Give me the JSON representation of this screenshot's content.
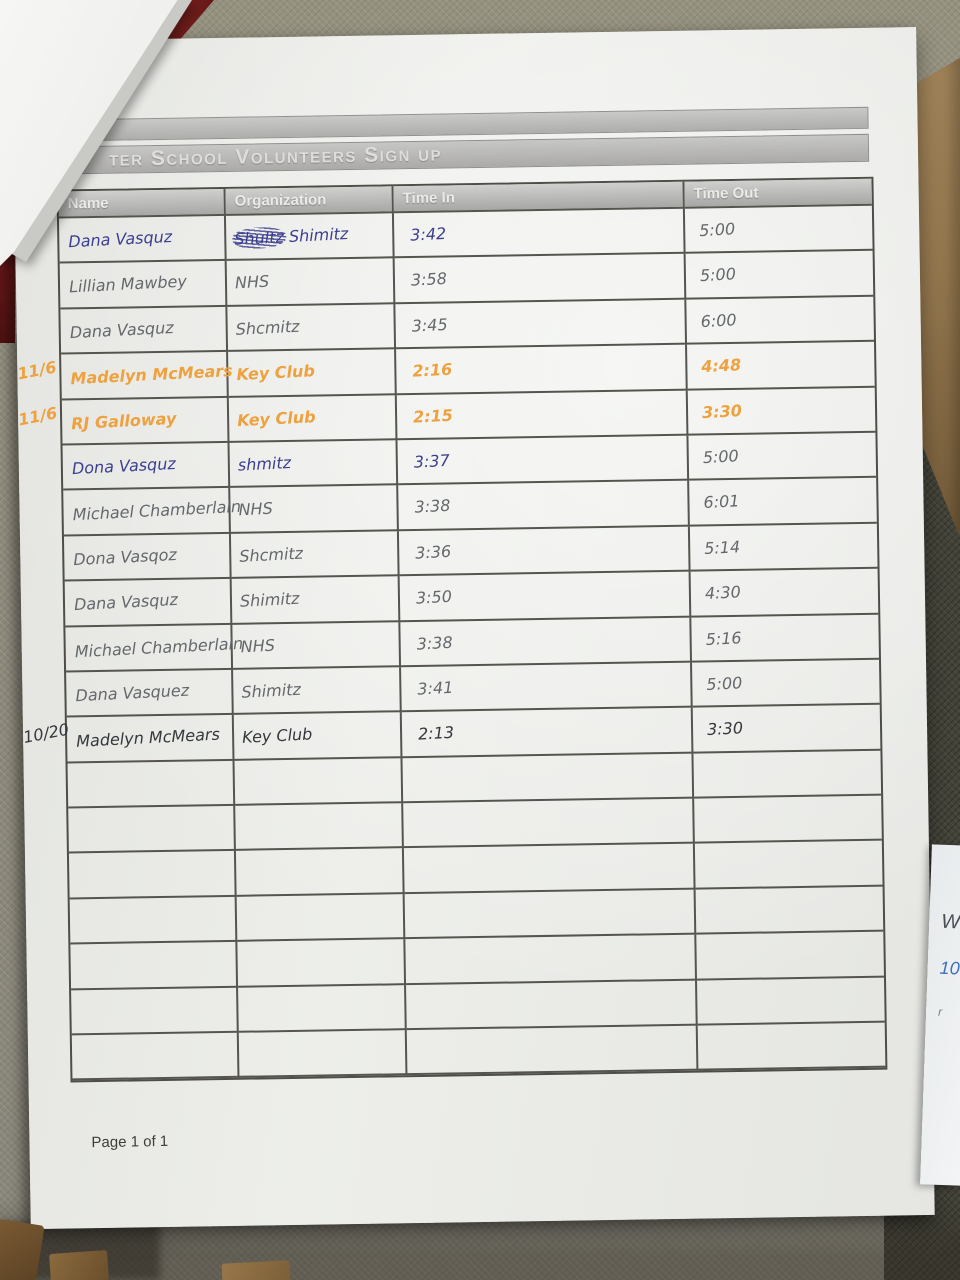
{
  "sheet": {
    "title_visible": "ter School Volunteers Sign up",
    "columns": [
      "Name",
      "Organization",
      "Time In",
      "Time Out"
    ],
    "rows": [
      {
        "margin_note": "",
        "name": "Dana Vasquz",
        "organization": "Shultz Shimitz",
        "organization_scribble": "Shultz",
        "time_in": "3:42",
        "time_out": "5:00",
        "ink": "blue",
        "time_out_ink": "pencil",
        "size": "lg"
      },
      {
        "margin_note": "",
        "name": "Lillian Mawbey",
        "organization": "NHS",
        "time_in": "3:58",
        "time_out": "5:00",
        "ink": "pencil",
        "size": "md"
      },
      {
        "margin_note": "",
        "name": "Dana Vasquz",
        "organization": "Shcmitz",
        "time_in": "3:45",
        "time_out": "6:00",
        "ink": "pencil",
        "size": "lg"
      },
      {
        "margin_note": "11/6",
        "name": "Madelyn McMears",
        "organization": "Key Club",
        "time_in": "2:16",
        "time_out": "4:48",
        "ink": "orange",
        "size": "lg",
        "crammed": true
      },
      {
        "margin_note": "11/6",
        "name": "RJ Galloway",
        "organization": "Key Club",
        "time_in": "2:15",
        "time_out": "3:30",
        "ink": "orange",
        "size": "lg"
      },
      {
        "margin_note": "",
        "name": "Dona Vasquz",
        "organization": "shmitz",
        "time_in": "3:37",
        "time_out": "5:00",
        "ink": "blue",
        "time_out_ink": "pencil",
        "size": "lg"
      },
      {
        "margin_note": "",
        "name": "Michael Chamberlain",
        "organization": "NHS",
        "time_in": "3:38",
        "time_out": "6:01",
        "ink": "pencil",
        "size": "sm"
      },
      {
        "margin_note": "",
        "name": "Dona Vasqoz",
        "organization": "Shcmitz",
        "time_in": "3:36",
        "time_out": "5:14",
        "ink": "pencil",
        "size": "lg"
      },
      {
        "margin_note": "",
        "name": "Dana Vasquz",
        "organization": "Shimitz",
        "time_in": "3:50",
        "time_out": "4:30",
        "ink": "pencil",
        "size": "md"
      },
      {
        "margin_note": "",
        "name": "Michael Chamberlain",
        "organization": "NHS",
        "time_in": "3:38",
        "time_out": "5:16",
        "ink": "pencil",
        "size": "sm"
      },
      {
        "margin_note": "",
        "name": "Dana Vasquez",
        "organization": "Shimitz",
        "time_in": "3:41",
        "time_out": "5:00",
        "ink": "pencil",
        "size": "lg"
      },
      {
        "margin_note": "10/20",
        "name": "Madelyn McMears",
        "organization": "Key Club",
        "time_in": "2:13",
        "time_out": "3:30",
        "ink": "dark",
        "size": "md"
      }
    ],
    "empty_row_count": 7,
    "footer": "Page 1 of 1"
  },
  "side_paper": {
    "marks": [
      "W",
      "10",
      "r"
    ]
  },
  "colors": {
    "orange_marker": "#eda13f",
    "blue_pen": "#3c3f8f",
    "pencil_gray": "#64676b",
    "dark_pen": "#34373c",
    "maroon_folder": "#7c1f1f",
    "cardboard": "#9c7f55"
  }
}
